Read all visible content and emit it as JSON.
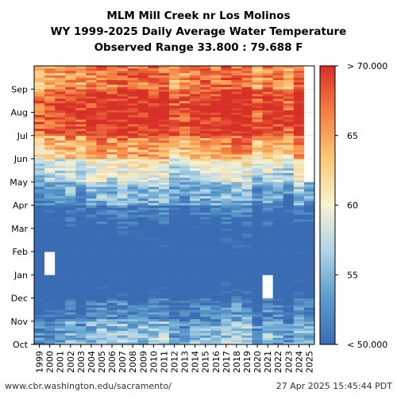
{
  "chart_data": {
    "type": "heatmap",
    "title_lines": [
      "MLM Mill Creek nr Los Molinos",
      "WY 1999-2025 Daily Average Water Temperature",
      "Observed Range 33.800 : 79.688 F"
    ],
    "x_categories": [
      "1999",
      "2000",
      "2001",
      "2002",
      "2003",
      "2004",
      "2005",
      "2006",
      "2007",
      "2008",
      "2009",
      "2010",
      "2011",
      "2012",
      "2013",
      "2014",
      "2015",
      "2016",
      "2017",
      "2018",
      "2019",
      "2020",
      "2021",
      "2022",
      "2023",
      "2024",
      "2025"
    ],
    "y_months": [
      "Oct",
      "Nov",
      "Dec",
      "Jan",
      "Feb",
      "Mar",
      "Apr",
      "May",
      "Jun",
      "Jul",
      "Aug",
      "Sep"
    ],
    "value_range_f": [
      33.8,
      79.688
    ],
    "colorbar": {
      "min": 50,
      "max": 70,
      "ticks": [
        {
          "value": 50,
          "label": "< 50.000"
        },
        {
          "value": 55,
          "label": "55"
        },
        {
          "value": 60,
          "label": "60"
        },
        {
          "value": 65,
          "label": "65"
        },
        {
          "value": 70,
          "label": "> 70.000"
        }
      ],
      "colors": [
        "#3a6cb4",
        "#5b9ccb",
        "#aed3e8",
        "#f7f2d2",
        "#fbc977",
        "#f57f42",
        "#d73027"
      ]
    },
    "monthly_typical_f": {
      "Oct": 55,
      "Nov": 52,
      "Dec": 47,
      "Jan": 45,
      "Feb": 46,
      "Mar": 48,
      "Apr": 53,
      "May": 57,
      "Jun": 63,
      "Jul": 69,
      "Aug": 70,
      "Sep": 66
    },
    "missing": [
      {
        "water_year": "2000",
        "month": "Jan"
      },
      {
        "water_year": "2021",
        "month": "Dec"
      },
      {
        "water_year": "2025",
        "month": "May"
      },
      {
        "water_year": "2025",
        "month": "Jun"
      },
      {
        "water_year": "2025",
        "month": "Jul"
      },
      {
        "water_year": "2025",
        "month": "Aug"
      },
      {
        "water_year": "2025",
        "month": "Sep"
      }
    ],
    "grid": true
  },
  "footer": {
    "source": "www.cbr.washington.edu/sacramento/",
    "timestamp": "27 Apr 2025 15:45:44 PDT"
  }
}
